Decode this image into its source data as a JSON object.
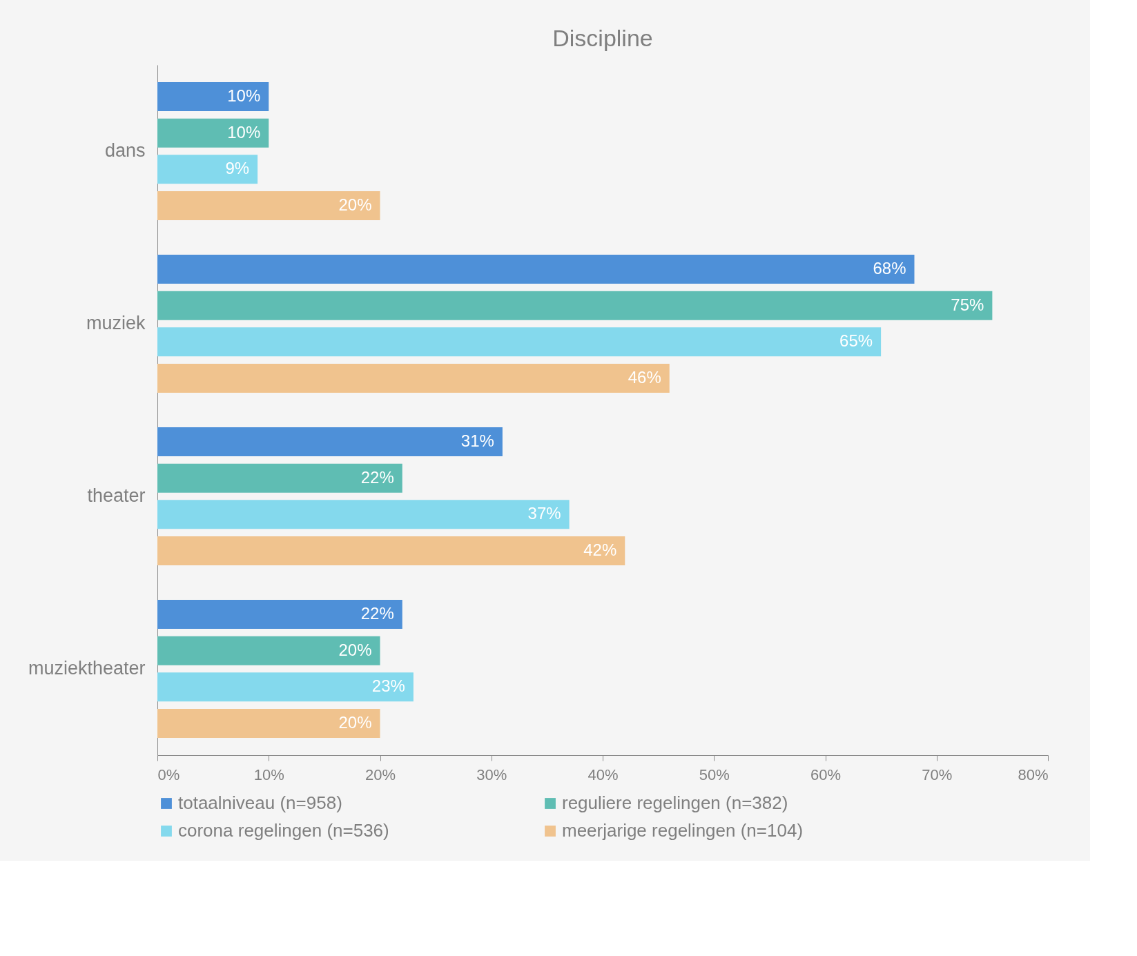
{
  "chart_data": {
    "type": "bar",
    "orientation": "horizontal",
    "title": "Discipline",
    "categories": [
      "dans",
      "muziek",
      "theater",
      "muziektheater"
    ],
    "series": [
      {
        "name": "totaalniveau (n=958)",
        "color": "#4e90d8",
        "values": [
          10,
          68,
          31,
          22
        ],
        "value_labels": [
          "10%",
          "68%",
          "31%",
          "22%"
        ]
      },
      {
        "name": "reguliere regelingen (n=382)",
        "color": "#5fbdb3",
        "values": [
          10,
          75,
          22,
          20
        ],
        "value_labels": [
          "10%",
          "75%",
          "22%",
          "20%"
        ]
      },
      {
        "name": "corona regelingen (n=536)",
        "color": "#84d9ed",
        "values": [
          9,
          65,
          37,
          23
        ],
        "value_labels": [
          "9%",
          "65%",
          "37%",
          "23%"
        ]
      },
      {
        "name": "meerjarige regelingen (n=104)",
        "color": "#f0c38e",
        "values": [
          20,
          46,
          42,
          20
        ],
        "value_labels": [
          "20%",
          "46%",
          "42%",
          "20%"
        ]
      }
    ],
    "xlim": [
      0,
      80
    ],
    "xticks": [
      {
        "value": 0,
        "label": "0%"
      },
      {
        "value": 10,
        "label": "10%"
      },
      {
        "value": 20,
        "label": "20%"
      },
      {
        "value": 30,
        "label": "30%"
      },
      {
        "value": 40,
        "label": "40%"
      },
      {
        "value": 50,
        "label": "50%"
      },
      {
        "value": 60,
        "label": "60%"
      },
      {
        "value": 70,
        "label": "70%"
      },
      {
        "value": 80,
        "label": "80%"
      }
    ],
    "grid": false,
    "legend": "bottom"
  }
}
